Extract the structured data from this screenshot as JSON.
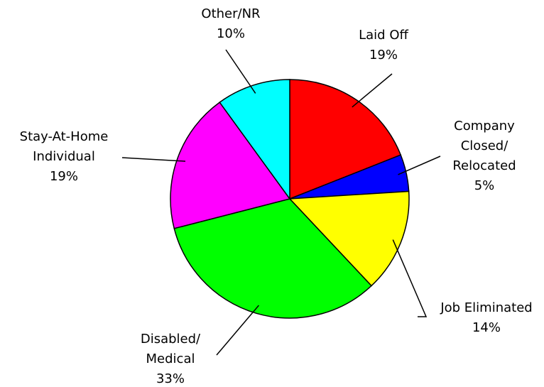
{
  "chart_data": {
    "type": "pie",
    "categories": [
      "Laid Off",
      "Company\nClosed/\nRelocated",
      "Job Eliminated",
      "Disabled/\nMedical",
      "Stay-At-Home\nIndividual",
      "Other/NR"
    ],
    "values": [
      19,
      5,
      14,
      33,
      19,
      10
    ],
    "value_labels": [
      "19%",
      "5%",
      "14%",
      "33%",
      "19%",
      "10%"
    ],
    "colors": [
      "#ff0000",
      "#0000ff",
      "#ffff00",
      "#00ff00",
      "#ff00ff",
      "#00ffff"
    ],
    "start_angle": 0,
    "direction": "clockwise"
  }
}
